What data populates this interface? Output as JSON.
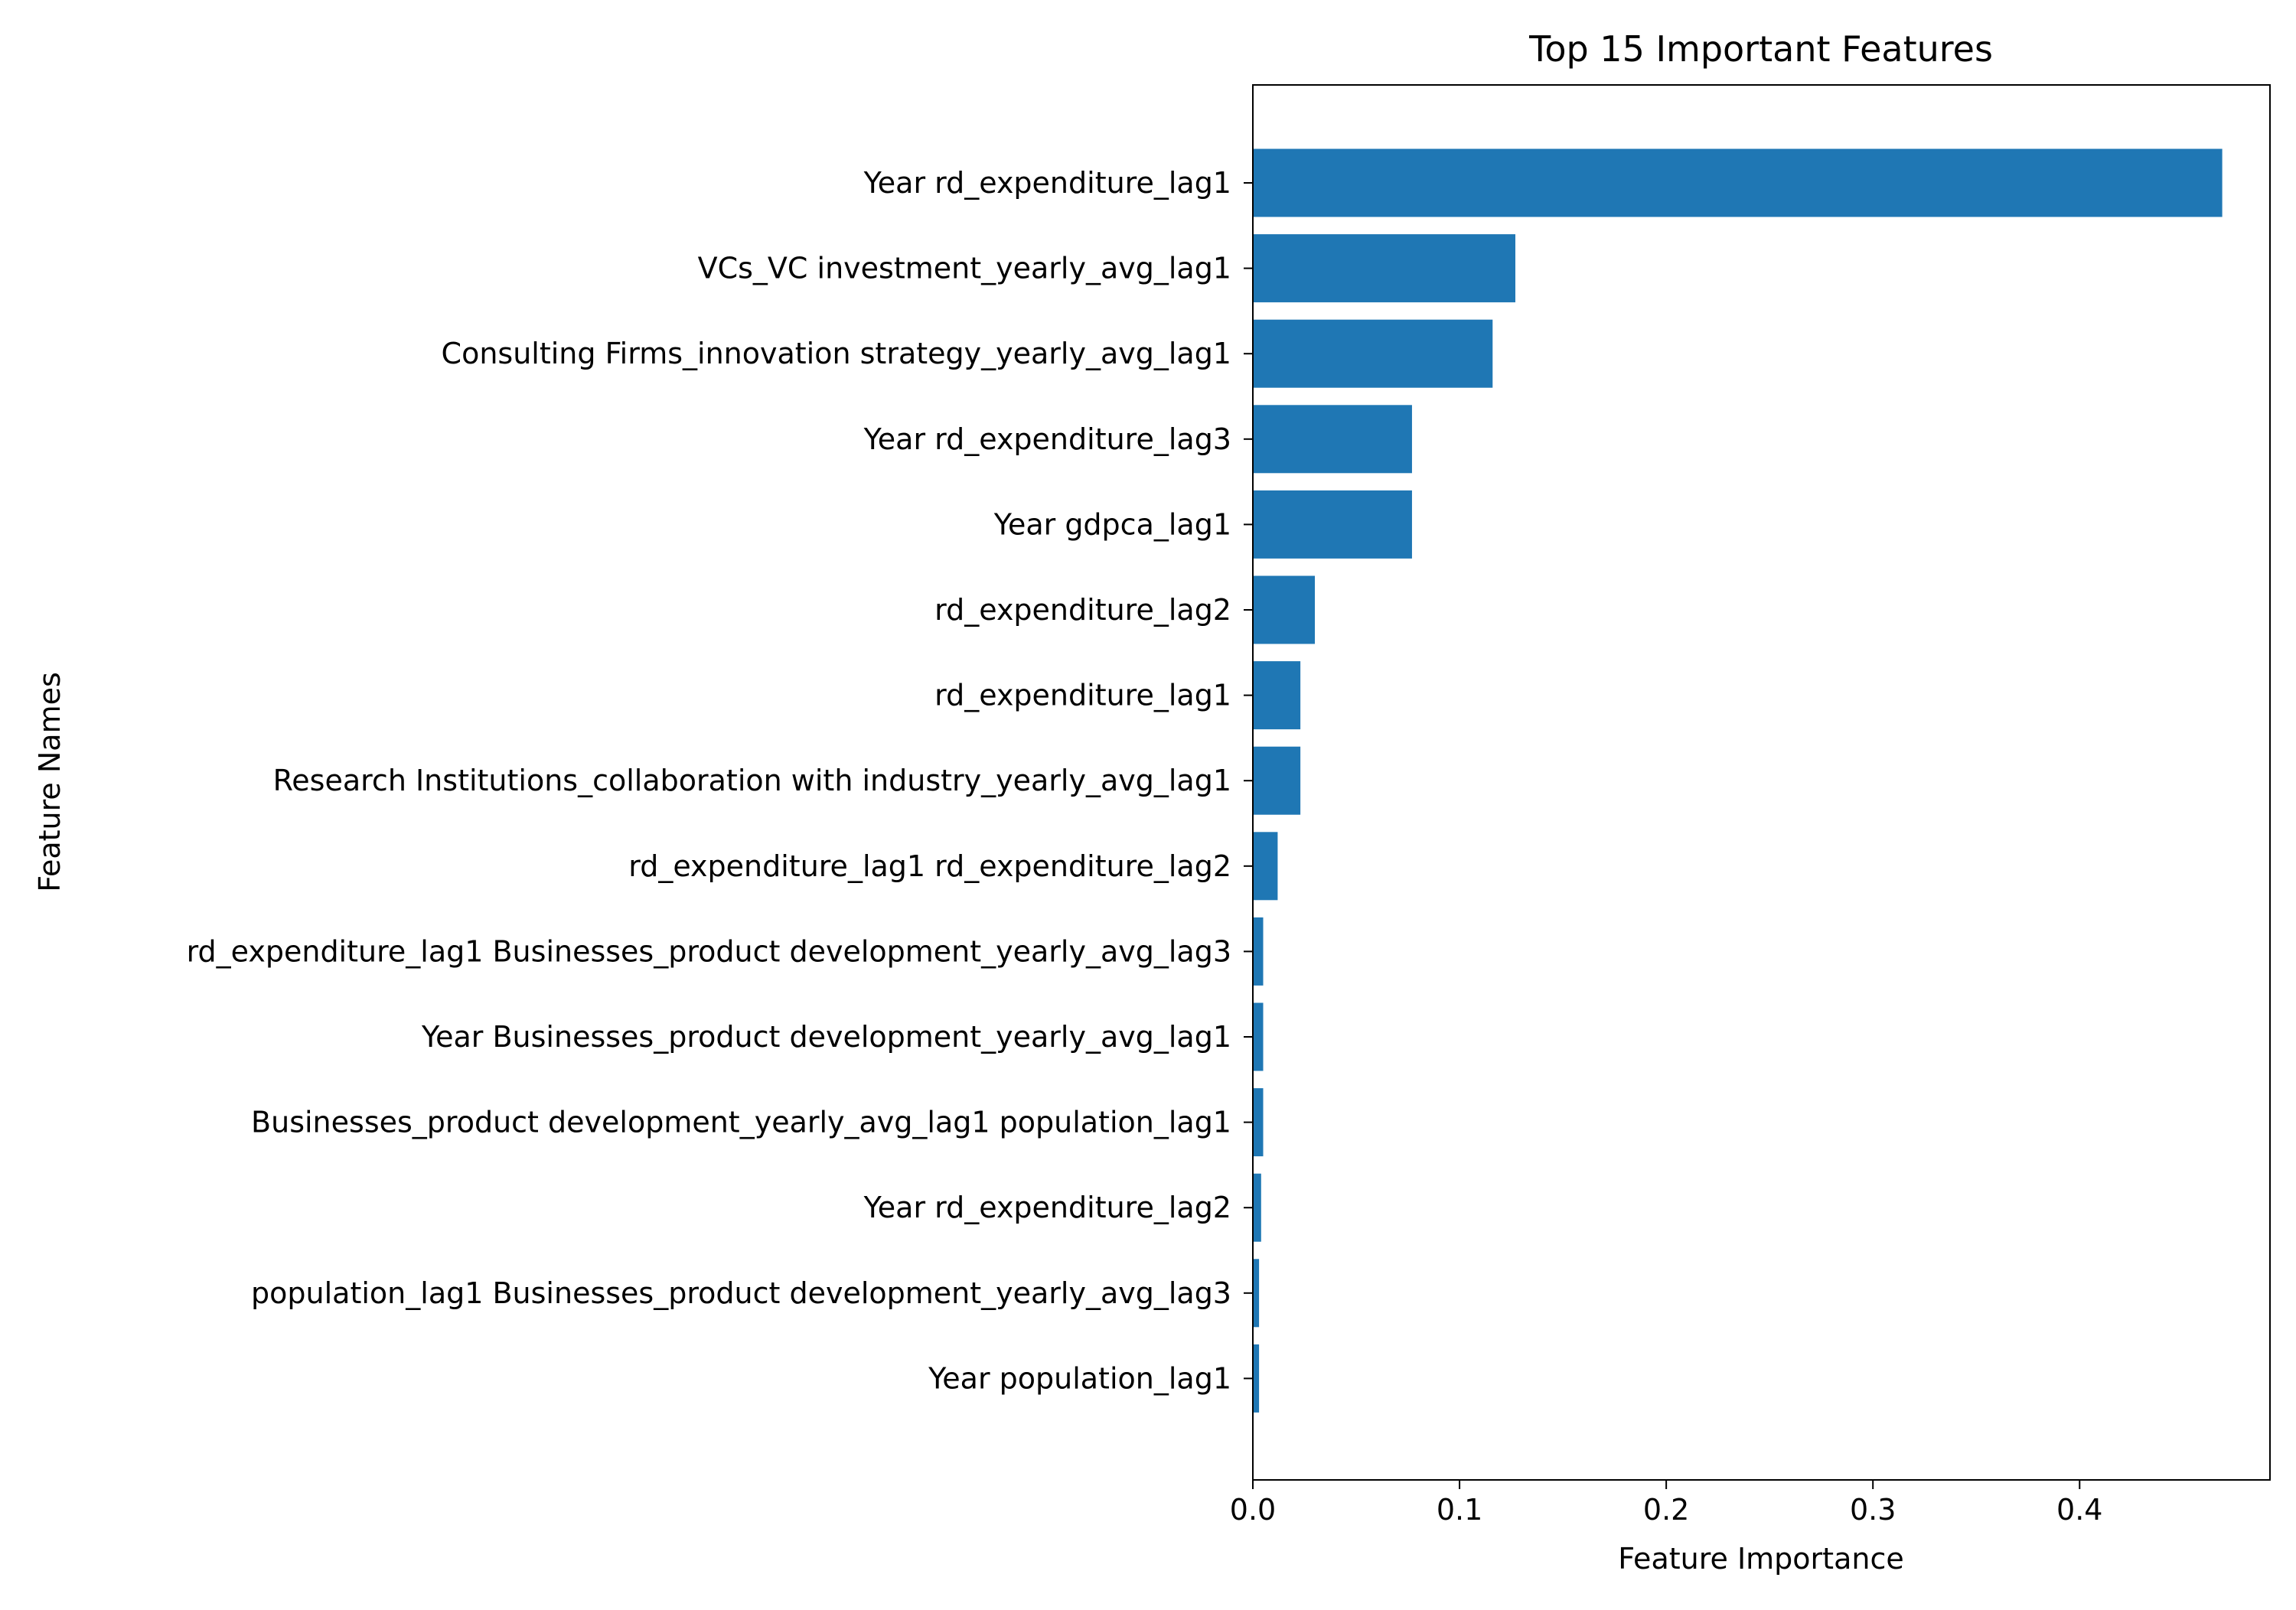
{
  "chart_data": {
    "type": "bar",
    "orientation": "horizontal",
    "title": "Top 15 Important Features",
    "xlabel": "Feature Importance",
    "ylabel": "Feature Names",
    "xlim": [
      0,
      0.4921
    ],
    "xticks": [
      0.0,
      0.1,
      0.2,
      0.3,
      0.4
    ],
    "xtick_labels": [
      "0.0",
      "0.1",
      "0.2",
      "0.3",
      "0.4"
    ],
    "grid": false,
    "bar_color": "#1f77b4",
    "categories": [
      "Year rd_expenditure_lag1",
      "VCs_VC investment_yearly_avg_lag1",
      "Consulting Firms_innovation strategy_yearly_avg_lag1",
      "Year rd_expenditure_lag3",
      "Year gdpca_lag1",
      "rd_expenditure_lag2",
      "rd_expenditure_lag1",
      "Research Institutions_collaboration with industry_yearly_avg_lag1",
      "rd_expenditure_lag1 rd_expenditure_lag2",
      "rd_expenditure_lag1 Businesses_product development_yearly_avg_lag3",
      "Year Businesses_product development_yearly_avg_lag1",
      "Businesses_product development_yearly_avg_lag1 population_lag1",
      "Year rd_expenditure_lag2",
      "population_lag1 Businesses_product development_yearly_avg_lag3",
      "Year population_lag1"
    ],
    "values": [
      0.469,
      0.127,
      0.116,
      0.077,
      0.077,
      0.03,
      0.023,
      0.023,
      0.012,
      0.005,
      0.005,
      0.005,
      0.004,
      0.003,
      0.003
    ]
  }
}
